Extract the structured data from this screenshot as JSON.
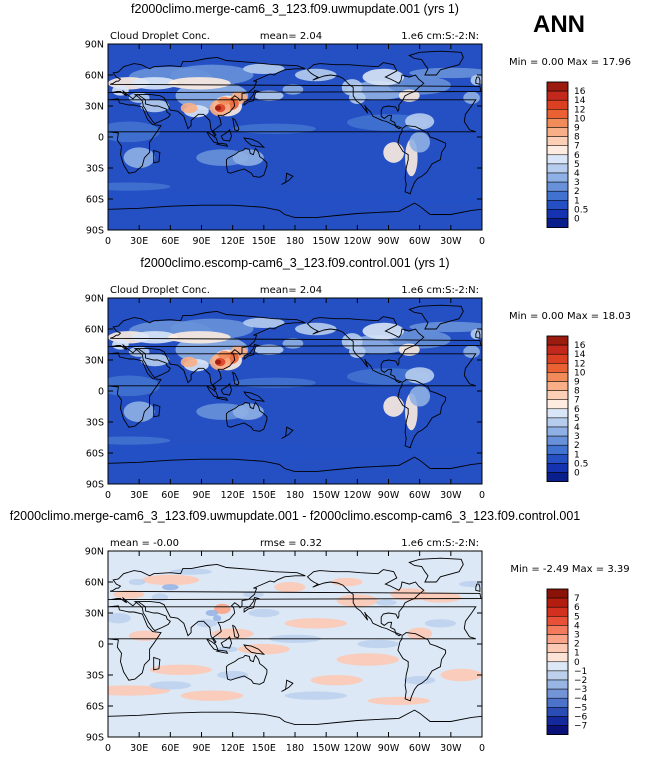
{
  "season": "ANN",
  "lon_ticks": [
    "0",
    "30E",
    "60E",
    "90E",
    "120E",
    "150E",
    "180",
    "150W",
    "120W",
    "90W",
    "60W",
    "30W",
    "0"
  ],
  "lat_ticks": [
    "90N",
    "60N",
    "30N",
    "0",
    "30S",
    "60S",
    "90S"
  ],
  "panels": [
    {
      "title": "f2000climo.merge-cam6_3_123.f09.uwmupdate.001 (yrs 1)",
      "left_text": "Cloud Droplet Conc.",
      "center_text": "mean=     2.04",
      "right_text": "1.e6 cm:S:-2:N:",
      "minmax": "Min =      0.00 Max =    17.96",
      "colorbar_labels": [
        "16",
        "14",
        "12",
        "10",
        "9",
        "8",
        "7",
        "6",
        "5",
        "4",
        "3",
        "2",
        "1",
        "0.5",
        "0"
      ],
      "colors": [
        "#9b1b0e",
        "#c2291c",
        "#dc4023",
        "#ea6234",
        "#f28b5a",
        "#f8ae86",
        "#fbd0b6",
        "#fdecdf",
        "#d9e6f7",
        "#b6cdee",
        "#8fb0e4",
        "#6891d9",
        "#4172d0",
        "#2450c4",
        "#1533b0",
        "#0a1e8c"
      ]
    },
    {
      "title": "f2000climo.escomp-cam6_3_123.f09.control.001 (yrs 1)",
      "left_text": "Cloud Droplet Conc.",
      "center_text": "mean=     2.04",
      "right_text": "1.e6 cm:S:-2:N:",
      "minmax": "Min =      0.00 Max =    18.03",
      "colorbar_labels": [
        "16",
        "14",
        "12",
        "10",
        "9",
        "8",
        "7",
        "6",
        "5",
        "4",
        "3",
        "2",
        "1",
        "0.5",
        "0"
      ],
      "colors": [
        "#9b1b0e",
        "#c2291c",
        "#dc4023",
        "#ea6234",
        "#f28b5a",
        "#f8ae86",
        "#fbd0b6",
        "#fdecdf",
        "#d9e6f7",
        "#b6cdee",
        "#8fb0e4",
        "#6891d9",
        "#4172d0",
        "#2450c4",
        "#1533b0",
        "#0a1e8c"
      ]
    },
    {
      "title": "f2000climo.merge-cam6_3_123.f09.uwmupdate.001 - f2000climo.escomp-cam6_3_123.f09.control.001",
      "left_text": "mean =    -0.00",
      "center_text": "rmse =     0.32",
      "right_text": "1.e6 cm:S:-2:N:",
      "minmax": "Min =   -2.49 Max =     3.39",
      "colorbar_labels": [
        "7",
        "6",
        "5",
        "4",
        "3",
        "2",
        "1",
        "0",
        "−1",
        "−2",
        "−3",
        "−4",
        "−5",
        "−6",
        "−7"
      ],
      "colors": [
        "#8a1206",
        "#b21d10",
        "#d3301f",
        "#e85138",
        "#f37a5c",
        "#f9a488",
        "#fcc9b5",
        "#fde3d6",
        "#dde8f6",
        "#bcd0ee",
        "#98b5e4",
        "#7395d8",
        "#4d72c9",
        "#2a4cb5",
        "#14299c",
        "#0a127a"
      ]
    }
  ]
}
